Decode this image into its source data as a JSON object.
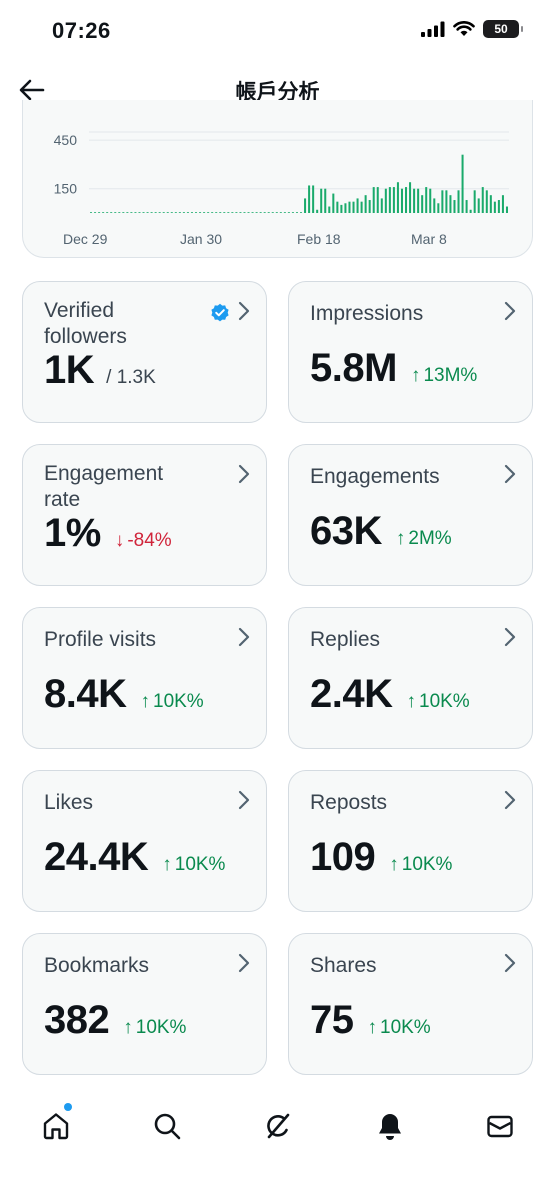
{
  "status": {
    "time": "07:26",
    "battery": "50"
  },
  "header": {
    "title": "帳戶分析"
  },
  "chart_data": {
    "type": "bar",
    "x_ticks": [
      "Dec 29",
      "Jan 30",
      "Feb 18",
      "Mar 8"
    ],
    "y_ticks": [
      "450",
      "150"
    ],
    "values": [
      2,
      1,
      1,
      0,
      2,
      1,
      0,
      1,
      1,
      0,
      1,
      1,
      0,
      2,
      1,
      0,
      1,
      0,
      3,
      5,
      4,
      3,
      2,
      3,
      1,
      0,
      2,
      3,
      1,
      0,
      2,
      1,
      0,
      1,
      3,
      0,
      1,
      0,
      2,
      1,
      4,
      0,
      1,
      2,
      0,
      1,
      0,
      1,
      3,
      2,
      1,
      0,
      2,
      90,
      170,
      170,
      20,
      150,
      150,
      40,
      120,
      70,
      50,
      60,
      70,
      70,
      90,
      70,
      110,
      80,
      160,
      160,
      90,
      150,
      160,
      160,
      190,
      150,
      160,
      190,
      150,
      150,
      110,
      160,
      150,
      90,
      60,
      140,
      140,
      110,
      80,
      140,
      360,
      80,
      20,
      140,
      90,
      160,
      140,
      110,
      70,
      80,
      110,
      40
    ],
    "ylim": [
      0,
      500
    ],
    "grid": true,
    "color": "#1aaa6b"
  },
  "cards": [
    {
      "label": "Verified followers",
      "value": "1K",
      "sub": "/ 1.3K",
      "change": "",
      "dir": ""
    },
    {
      "label": "Impressions",
      "value": "5.8M",
      "sub": "",
      "change": "13M%",
      "dir": "up"
    },
    {
      "label": "Engagement rate",
      "value": "1%",
      "sub": "",
      "change": "-84%",
      "dir": "down"
    },
    {
      "label": "Engagements",
      "value": "63K",
      "sub": "",
      "change": "2M%",
      "dir": "up"
    },
    {
      "label": "Profile visits",
      "value": "8.4K",
      "sub": "",
      "change": "10K%",
      "dir": "up"
    },
    {
      "label": "Replies",
      "value": "2.4K",
      "sub": "",
      "change": "10K%",
      "dir": "up"
    },
    {
      "label": "Likes",
      "value": "24.4K",
      "sub": "",
      "change": "10K%",
      "dir": "up"
    },
    {
      "label": "Reposts",
      "value": "109",
      "sub": "",
      "change": "10K%",
      "dir": "up"
    },
    {
      "label": "Bookmarks",
      "value": "382",
      "sub": "",
      "change": "10K%",
      "dir": "up"
    },
    {
      "label": "Shares",
      "value": "75",
      "sub": "",
      "change": "10K%",
      "dir": "up"
    }
  ],
  "tabs": [
    "home-icon",
    "search-icon",
    "grok-icon",
    "notifications-icon",
    "messages-icon"
  ],
  "colors": {
    "up": "#0a8a4e",
    "down": "#d0243a",
    "accent": "#1d9bf0"
  }
}
